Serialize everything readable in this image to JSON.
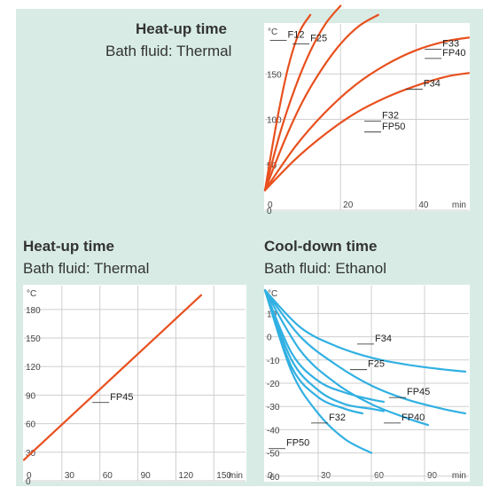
{
  "colors": {
    "panel_bg": "#d8ece5",
    "heat_curve": "#e8501e",
    "cool_curve": "#31b0e2",
    "grid": "#cfcfcf"
  },
  "chart_data": [
    {
      "type": "line",
      "title": "Heat-up time",
      "subtitle": "Bath fluid: Thermal",
      "y_unit": "°C",
      "x_unit": "min",
      "xlim": [
        0,
        54
      ],
      "ylim": [
        0,
        205
      ],
      "xticks": [
        0,
        20,
        40
      ],
      "yticks": [
        0,
        50,
        100,
        150
      ],
      "grid": true,
      "curve_color": "#e8501e",
      "series": [
        {
          "x": [
            0,
            3,
            6,
            9,
            12
          ],
          "y": [
            22,
            95,
            155,
            195,
            215
          ]
        },
        {
          "x": [
            0,
            4,
            8,
            12,
            16,
            20
          ],
          "y": [
            22,
            85,
            135,
            175,
            205,
            225
          ]
        },
        {
          "x": [
            0,
            5,
            10,
            15,
            20,
            25,
            30
          ],
          "y": [
            22,
            75,
            120,
            155,
            183,
            203,
            215
          ]
        },
        {
          "x": [
            0,
            8,
            16,
            24,
            32,
            40,
            48,
            54
          ],
          "y": [
            22,
            70,
            108,
            138,
            160,
            176,
            186,
            190
          ]
        },
        {
          "x": [
            0,
            8,
            16,
            24,
            32,
            40,
            48,
            54
          ],
          "y": [
            22,
            56,
            84,
            107,
            124,
            137,
            147,
            151
          ]
        }
      ],
      "annotations": [
        {
          "text": "F12",
          "x": 6,
          "y": 190
        },
        {
          "text": "F25",
          "x": 12,
          "y": 186
        },
        {
          "text": "F33",
          "x": 47,
          "y": 180
        },
        {
          "text": "FP40",
          "x": 47,
          "y": 170
        },
        {
          "text": "F34",
          "x": 42,
          "y": 136
        },
        {
          "text": "F32",
          "x": 31,
          "y": 101
        },
        {
          "text": "FP50",
          "x": 31,
          "y": 89
        }
      ]
    },
    {
      "type": "line",
      "title": "Heat-up time",
      "subtitle": "Bath fluid: Thermal",
      "y_unit": "°C",
      "x_unit": "min",
      "xlim": [
        0,
        175
      ],
      "ylim": [
        0,
        205
      ],
      "xticks": [
        0,
        30,
        60,
        90,
        120,
        150
      ],
      "yticks": [
        0,
        30,
        60,
        90,
        120,
        150,
        180
      ],
      "grid": true,
      "curve_color": "#e8501e",
      "series": [
        {
          "x": [
            0,
            140
          ],
          "y": [
            22,
            195
          ]
        }
      ],
      "annotations": [
        {
          "text": "FP45",
          "x": 68,
          "y": 85
        }
      ]
    },
    {
      "type": "line",
      "title": "Cool-down time",
      "subtitle": "Bath fluid: Ethanol",
      "y_unit": "°C",
      "x_unit": "min",
      "xlim": [
        0,
        115
      ],
      "ylim": [
        -62,
        22
      ],
      "xticks": [
        0,
        30,
        60,
        90
      ],
      "yticks": [
        -60,
        -50,
        -40,
        -30,
        -20,
        -10,
        0,
        10
      ],
      "grid": true,
      "curve_color": "#31b0e2",
      "series": [
        {
          "x": [
            0,
            20,
            40,
            60,
            80,
            100,
            113
          ],
          "y": [
            20,
            4,
            -4,
            -9,
            -12,
            -14,
            -15
          ]
        },
        {
          "x": [
            0,
            20,
            40,
            60,
            80,
            100,
            113
          ],
          "y": [
            20,
            0,
            -12,
            -21,
            -27,
            -31,
            -33
          ]
        },
        {
          "x": [
            0,
            20,
            40,
            60,
            80,
            92
          ],
          "y": [
            20,
            -6,
            -20,
            -29,
            -35,
            -38
          ]
        },
        {
          "x": [
            0,
            15,
            30,
            45,
            60,
            67
          ],
          "y": [
            20,
            -7,
            -19,
            -24,
            -27,
            -28
          ]
        },
        {
          "x": [
            0,
            15,
            30,
            45,
            60,
            67
          ],
          "y": [
            20,
            -10,
            -23,
            -29,
            -31,
            -32
          ]
        },
        {
          "x": [
            0,
            15,
            30,
            45,
            55
          ],
          "y": [
            20,
            -13,
            -26,
            -31,
            -33
          ]
        },
        {
          "x": [
            0,
            15,
            30,
            45,
            60
          ],
          "y": [
            20,
            -15,
            -33,
            -44,
            -50
          ]
        }
      ],
      "annotations": [
        {
          "text": "F34",
          "x": 62,
          "y": -2
        },
        {
          "text": "F25",
          "x": 58,
          "y": -13
        },
        {
          "text": "FP45",
          "x": 80,
          "y": -25
        },
        {
          "text": "FP40",
          "x": 77,
          "y": -36
        },
        {
          "text": "F32",
          "x": 36,
          "y": -36
        },
        {
          "text": "FP50",
          "x": 12,
          "y": -47
        }
      ]
    }
  ]
}
